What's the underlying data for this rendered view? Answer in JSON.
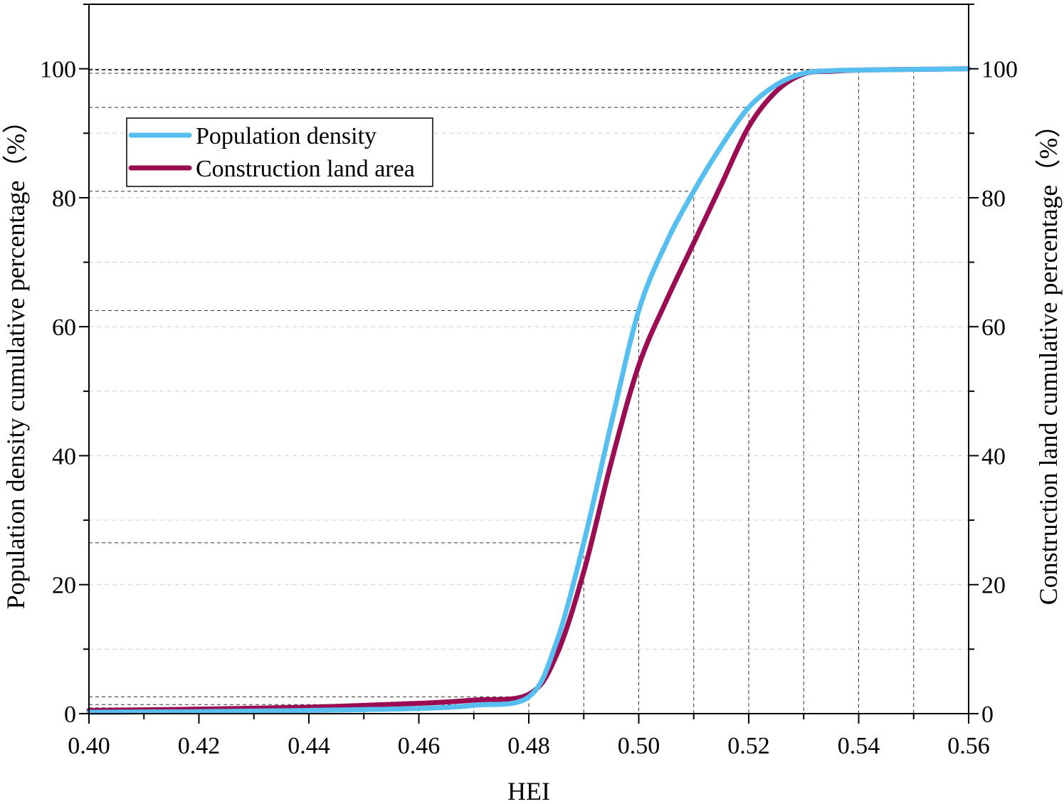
{
  "chart_data": {
    "type": "line",
    "xlabel": "HEI",
    "ylabel_left": "Population density cumulative percentage（%）",
    "ylabel_right": "Construction land cumulative percentage（%）",
    "xlim": [
      0.4,
      0.56
    ],
    "ylim": [
      0,
      110
    ],
    "x_ticks": [
      "0.40",
      "0.42",
      "0.44",
      "0.46",
      "0.48",
      "0.50",
      "0.52",
      "0.54",
      "0.56"
    ],
    "y_ticks_left": [
      "0",
      "20",
      "40",
      "60",
      "80",
      "100"
    ],
    "y_ticks_right": [
      "0",
      "20",
      "40",
      "60",
      "80",
      "100"
    ],
    "grid": "horizontal dashed light gray",
    "legend_position": "top-left",
    "series": [
      {
        "name": "Population density",
        "color": "#57bff0",
        "x": [
          0.4,
          0.42,
          0.44,
          0.46,
          0.47,
          0.48,
          0.485,
          0.49,
          0.495,
          0.5,
          0.505,
          0.51,
          0.515,
          0.52,
          0.525,
          0.53,
          0.535,
          0.54,
          0.55,
          0.56
        ],
        "y": [
          0.2,
          0.3,
          0.5,
          0.8,
          1.3,
          2.6,
          11,
          26.5,
          45,
          62.5,
          73,
          81,
          88,
          94,
          97.5,
          99.3,
          99.7,
          99.8,
          99.9,
          100
        ]
      },
      {
        "name": "Construction land area",
        "color": "#9b0d52",
        "x": [
          0.4,
          0.42,
          0.44,
          0.46,
          0.47,
          0.48,
          0.485,
          0.49,
          0.495,
          0.5,
          0.505,
          0.51,
          0.515,
          0.52,
          0.525,
          0.53,
          0.535,
          0.54,
          0.55,
          0.56
        ],
        "y": [
          0.5,
          0.7,
          1.0,
          1.6,
          2.1,
          3.0,
          9,
          22,
          39,
          54,
          64,
          73,
          82,
          91,
          96.5,
          99.2,
          99.6,
          99.8,
          99.9,
          100
        ]
      }
    ],
    "reference_points": [
      {
        "x": 0.45,
        "y": 0.6
      },
      {
        "x": 0.46,
        "y": 0.9
      },
      {
        "x": 0.47,
        "y": 1.4
      },
      {
        "x": 0.48,
        "y": 2.6
      },
      {
        "x": 0.49,
        "y": 26.5
      },
      {
        "x": 0.5,
        "y": 62.5
      },
      {
        "x": 0.51,
        "y": 81
      },
      {
        "x": 0.52,
        "y": 94
      },
      {
        "x": 0.53,
        "y": 99.3
      },
      {
        "x": 0.54,
        "y": 99.8
      },
      {
        "x": 0.55,
        "y": 99.9
      }
    ]
  }
}
